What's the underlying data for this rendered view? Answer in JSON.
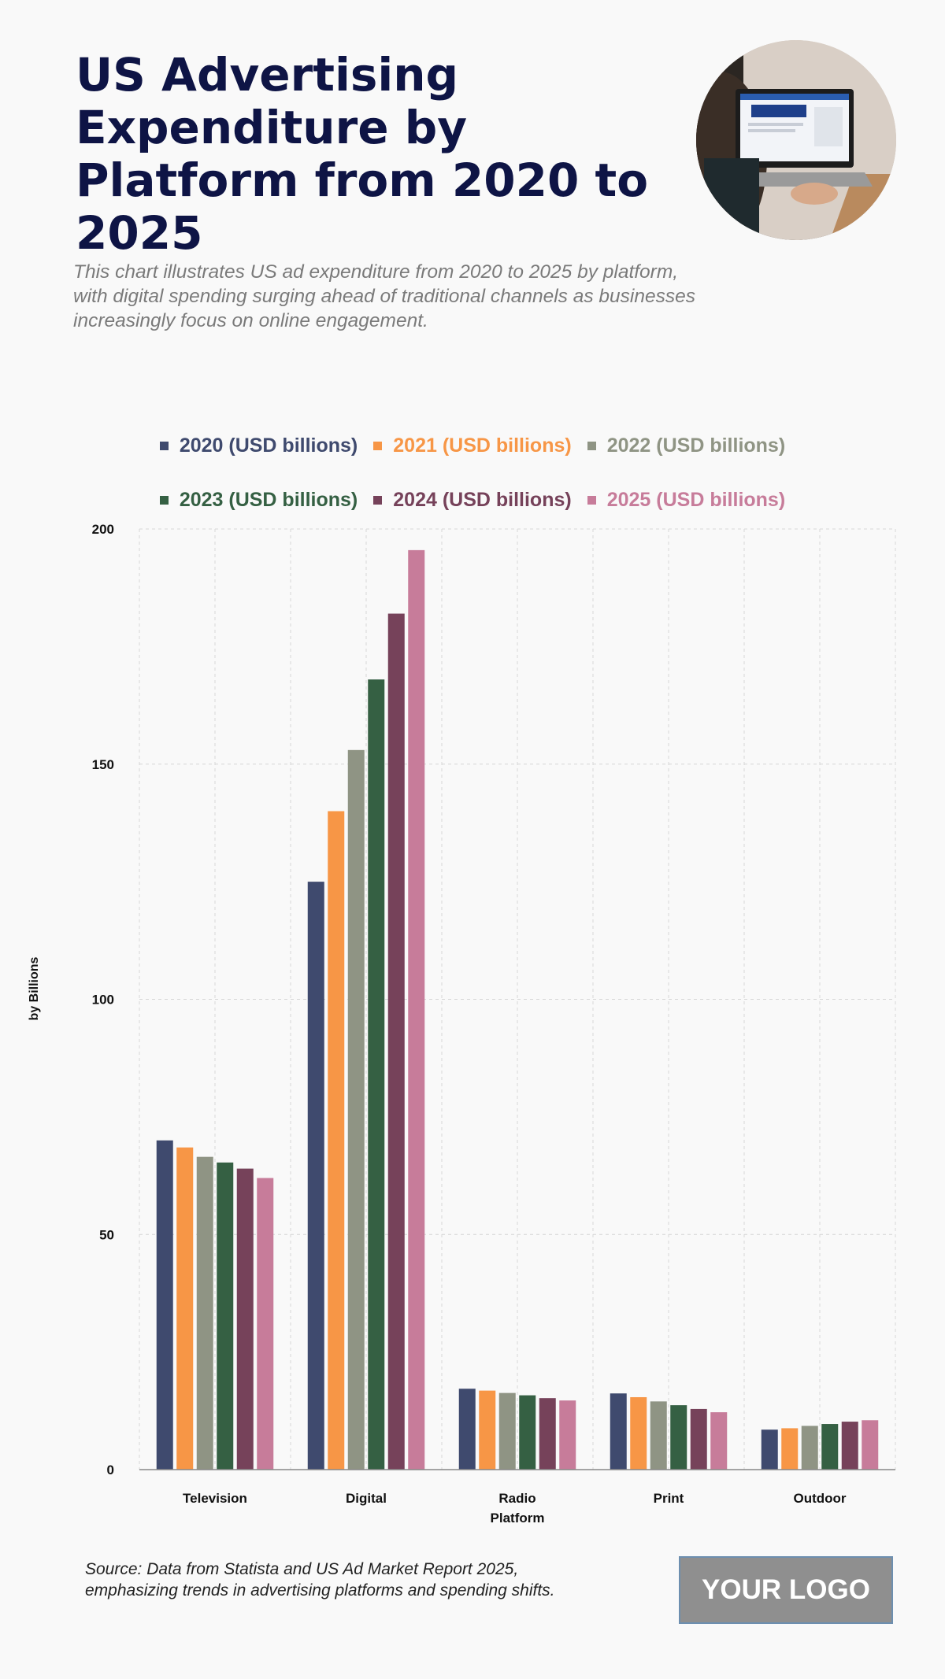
{
  "header": {
    "title": "US Advertising Expenditure by Platform from 2020 to 2025",
    "subtitle": "This chart illustrates US ad expenditure from 2020 to 2025 by platform, with digital spending surging ahead of traditional channels as businesses increasingly focus on online engagement."
  },
  "footer": {
    "source_line1": "Source: Data from Statista and US Ad Market Report 2025,",
    "source_line2": "emphasizing trends in advertising platforms and spending shifts.",
    "logo": "YOUR LOGO"
  },
  "chart_data": {
    "type": "bar",
    "xlabel": "Platform",
    "ylabel": "by Billions",
    "ylim": [
      0,
      200
    ],
    "yticks": [
      "0",
      "50",
      "100",
      "150",
      "200"
    ],
    "grid": true,
    "legend_placement": "top",
    "categories": [
      "Television",
      "Digital",
      "Radio",
      "Print",
      "Outdoor"
    ],
    "series": [
      {
        "name": "2020 (USD billions)",
        "color": "#3f4a6e",
        "values": [
          70,
          125,
          17.2,
          16.2,
          8.5
        ]
      },
      {
        "name": "2021 (USD billions)",
        "color": "#f79646",
        "values": [
          68.5,
          140,
          16.8,
          15.4,
          8.8
        ]
      },
      {
        "name": "2022 (USD billions)",
        "color": "#8f9484",
        "values": [
          66.5,
          153,
          16.3,
          14.5,
          9.3
        ]
      },
      {
        "name": "2023 (USD billions)",
        "color": "#356043",
        "values": [
          65.3,
          168,
          15.8,
          13.7,
          9.7
        ]
      },
      {
        "name": "2024 (USD billions)",
        "color": "#76425a",
        "values": [
          64,
          182,
          15.2,
          12.9,
          10.2
        ]
      },
      {
        "name": "2025 (USD billions)",
        "color": "#c77c9a",
        "values": [
          62,
          195.5,
          14.7,
          12.2,
          10.5
        ]
      }
    ]
  }
}
